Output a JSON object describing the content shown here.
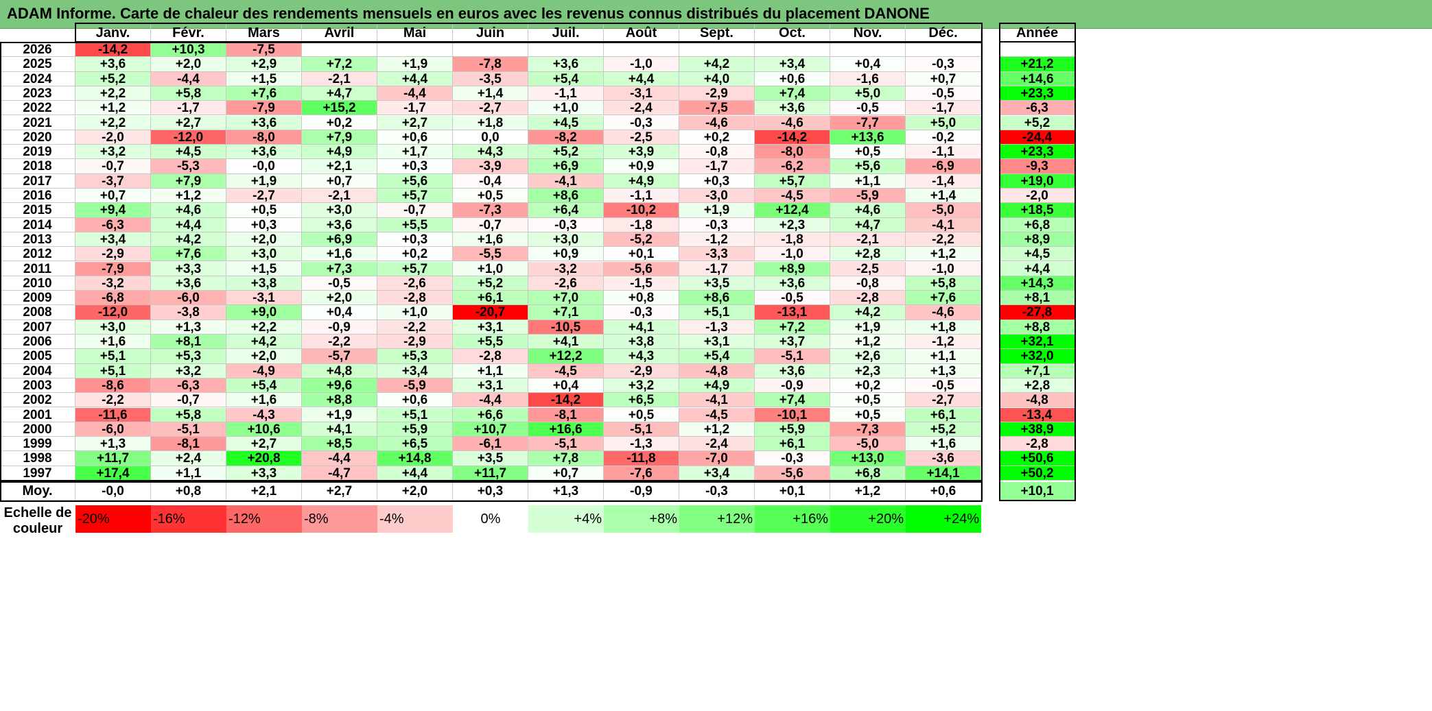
{
  "title": "ADAM Informe. Carte de chaleur des rendements mensuels en euros avec les revenus connus distribués du placement DANONE",
  "chart_data": {
    "type": "heatmap",
    "columns": [
      "Janv.",
      "Févr.",
      "Mars",
      "Avril",
      "Mai",
      "Juin",
      "Juil.",
      "Août",
      "Sept.",
      "Oct.",
      "Nov.",
      "Déc."
    ],
    "year_header": "Année",
    "rows": [
      {
        "year": "2026",
        "values": [
          "-14,2",
          "+10,3",
          "-7,5",
          "",
          "",
          "",
          "",
          "",
          "",
          "",
          "",
          ""
        ],
        "annual": ""
      },
      {
        "year": "2025",
        "values": [
          "+3,6",
          "+2,0",
          "+2,9",
          "+7,2",
          "+1,9",
          "-7,8",
          "+3,6",
          "-1,0",
          "+4,2",
          "+3,4",
          "+0,4",
          "-0,3"
        ],
        "annual": "+21,2"
      },
      {
        "year": "2024",
        "values": [
          "+5,2",
          "-4,4",
          "+1,5",
          "-2,1",
          "+4,4",
          "-3,5",
          "+5,4",
          "+4,4",
          "+4,0",
          "+0,6",
          "-1,6",
          "+0,7"
        ],
        "annual": "+14,6"
      },
      {
        "year": "2023",
        "values": [
          "+2,2",
          "+5,8",
          "+7,6",
          "+4,7",
          "-4,4",
          "+1,4",
          "-1,1",
          "-3,1",
          "-2,9",
          "+7,4",
          "+5,0",
          "-0,5"
        ],
        "annual": "+23,3"
      },
      {
        "year": "2022",
        "values": [
          "+1,2",
          "-1,7",
          "-7,9",
          "+15,2",
          "-1,7",
          "-2,7",
          "+1,0",
          "-2,4",
          "-7,5",
          "+3,6",
          "-0,5",
          "-1,7"
        ],
        "annual": "-6,3"
      },
      {
        "year": "2021",
        "values": [
          "+2,2",
          "+2,7",
          "+3,6",
          "+0,2",
          "+2,7",
          "+1,8",
          "+4,5",
          "-0,3",
          "-4,6",
          "-4,6",
          "-7,7",
          "+5,0"
        ],
        "annual": "+5,2"
      },
      {
        "year": "2020",
        "values": [
          "-2,0",
          "-12,0",
          "-8,0",
          "+7,9",
          "+0,6",
          "0,0",
          "-8,2",
          "-2,5",
          "+0,2",
          "-14,2",
          "+13,6",
          "-0,2"
        ],
        "annual": "-24,4"
      },
      {
        "year": "2019",
        "values": [
          "+3,2",
          "+4,5",
          "+3,6",
          "+4,9",
          "+1,7",
          "+4,3",
          "+5,2",
          "+3,9",
          "-0,8",
          "-8,0",
          "+0,5",
          "-1,1"
        ],
        "annual": "+23,3"
      },
      {
        "year": "2018",
        "values": [
          "-0,7",
          "-5,3",
          "-0,0",
          "+2,1",
          "+0,3",
          "-3,9",
          "+6,9",
          "+0,9",
          "-1,7",
          "-6,2",
          "+5,6",
          "-6,9"
        ],
        "annual": "-9,3"
      },
      {
        "year": "2017",
        "values": [
          "-3,7",
          "+7,9",
          "+1,9",
          "+0,7",
          "+5,6",
          "-0,4",
          "-4,1",
          "+4,9",
          "+0,3",
          "+5,7",
          "+1,1",
          "-1,4"
        ],
        "annual": "+19,0"
      },
      {
        "year": "2016",
        "values": [
          "+0,7",
          "+1,2",
          "-2,7",
          "-2,1",
          "+5,7",
          "+0,5",
          "+8,6",
          "-1,1",
          "-3,0",
          "-4,5",
          "-5,9",
          "+1,4"
        ],
        "annual": "-2,0"
      },
      {
        "year": "2015",
        "values": [
          "+9,4",
          "+4,6",
          "+0,5",
          "+3,0",
          "-0,7",
          "-7,3",
          "+6,4",
          "-10,2",
          "+1,9",
          "+12,4",
          "+4,6",
          "-5,0"
        ],
        "annual": "+18,5"
      },
      {
        "year": "2014",
        "values": [
          "-6,3",
          "+4,4",
          "+0,3",
          "+3,6",
          "+5,5",
          "-0,7",
          "-0,3",
          "-1,8",
          "-0,3",
          "+2,3",
          "+4,7",
          "-4,1"
        ],
        "annual": "+6,8"
      },
      {
        "year": "2013",
        "values": [
          "+3,4",
          "+4,2",
          "+2,0",
          "+6,9",
          "+0,3",
          "+1,6",
          "+3,0",
          "-5,2",
          "-1,2",
          "-1,8",
          "-2,1",
          "-2,2"
        ],
        "annual": "+8,9"
      },
      {
        "year": "2012",
        "values": [
          "-2,9",
          "+7,6",
          "+3,0",
          "+1,6",
          "+0,2",
          "-5,5",
          "+0,9",
          "+0,1",
          "-3,3",
          "-1,0",
          "+2,8",
          "+1,2"
        ],
        "annual": "+4,5"
      },
      {
        "year": "2011",
        "values": [
          "-7,9",
          "+3,3",
          "+1,5",
          "+7,3",
          "+5,7",
          "+1,0",
          "-3,2",
          "-5,6",
          "-1,7",
          "+8,9",
          "-2,5",
          "-1,0"
        ],
        "annual": "+4,4"
      },
      {
        "year": "2010",
        "values": [
          "-3,2",
          "+3,6",
          "+3,8",
          "-0,5",
          "-2,6",
          "+5,2",
          "-2,6",
          "-1,5",
          "+3,5",
          "+3,6",
          "-0,8",
          "+5,8"
        ],
        "annual": "+14,3"
      },
      {
        "year": "2009",
        "values": [
          "-6,8",
          "-6,0",
          "-3,1",
          "+2,0",
          "-2,8",
          "+6,1",
          "+7,0",
          "+0,8",
          "+8,6",
          "-0,5",
          "-2,8",
          "+7,6"
        ],
        "annual": "+8,1"
      },
      {
        "year": "2008",
        "values": [
          "-12,0",
          "-3,8",
          "+9,0",
          "+0,4",
          "+1,0",
          "-20,7",
          "+7,1",
          "-0,3",
          "+5,1",
          "-13,1",
          "+4,2",
          "-4,6"
        ],
        "annual": "-27,8"
      },
      {
        "year": "2007",
        "values": [
          "+3,0",
          "+1,3",
          "+2,2",
          "-0,9",
          "-2,2",
          "+3,1",
          "-10,5",
          "+4,1",
          "-1,3",
          "+7,2",
          "+1,9",
          "+1,8"
        ],
        "annual": "+8,8"
      },
      {
        "year": "2006",
        "values": [
          "+1,6",
          "+8,1",
          "+4,2",
          "-2,2",
          "-2,9",
          "+5,5",
          "+4,1",
          "+3,8",
          "+3,1",
          "+3,7",
          "+1,2",
          "-1,2"
        ],
        "annual": "+32,1"
      },
      {
        "year": "2005",
        "values": [
          "+5,1",
          "+5,3",
          "+2,0",
          "-5,7",
          "+5,3",
          "-2,8",
          "+12,2",
          "+4,3",
          "+5,4",
          "-5,1",
          "+2,6",
          "+1,1"
        ],
        "annual": "+32,0"
      },
      {
        "year": "2004",
        "values": [
          "+5,1",
          "+3,2",
          "-4,9",
          "+4,8",
          "+3,4",
          "+1,1",
          "-4,5",
          "-2,9",
          "-4,8",
          "+3,6",
          "+2,3",
          "+1,3"
        ],
        "annual": "+7,1"
      },
      {
        "year": "2003",
        "values": [
          "-8,6",
          "-6,3",
          "+5,4",
          "+9,6",
          "-5,9",
          "+3,1",
          "+0,4",
          "+3,2",
          "+4,9",
          "-0,9",
          "+0,2",
          "-0,5"
        ],
        "annual": "+2,8"
      },
      {
        "year": "2002",
        "values": [
          "-2,2",
          "-0,7",
          "+1,6",
          "+8,8",
          "+0,6",
          "-4,4",
          "-14,2",
          "+6,5",
          "-4,1",
          "+7,4",
          "+0,5",
          "-2,7"
        ],
        "annual": "-4,8"
      },
      {
        "year": "2001",
        "values": [
          "-11,6",
          "+5,8",
          "-4,3",
          "+1,9",
          "+5,1",
          "+6,6",
          "-8,1",
          "+0,5",
          "-4,5",
          "-10,1",
          "+0,5",
          "+6,1"
        ],
        "annual": "-13,4"
      },
      {
        "year": "2000",
        "values": [
          "-6,0",
          "-5,1",
          "+10,6",
          "+4,1",
          "+5,9",
          "+10,7",
          "+16,6",
          "-5,1",
          "+1,2",
          "+5,9",
          "-7,3",
          "+5,2"
        ],
        "annual": "+38,9"
      },
      {
        "year": "1999",
        "values": [
          "+1,3",
          "-8,1",
          "+2,7",
          "+8,5",
          "+6,5",
          "-6,1",
          "-5,1",
          "-1,3",
          "-2,4",
          "+6,1",
          "-5,0",
          "+1,6"
        ],
        "annual": "-2,8"
      },
      {
        "year": "1998",
        "values": [
          "+11,7",
          "+2,4",
          "+20,8",
          "-4,4",
          "+14,8",
          "+3,5",
          "+7,8",
          "-11,8",
          "-7,0",
          "-0,3",
          "+13,0",
          "-3,6"
        ],
        "annual": "+50,6"
      },
      {
        "year": "1997",
        "values": [
          "+17,4",
          "+1,1",
          "+3,3",
          "-4,7",
          "+4,4",
          "+11,7",
          "+0,7",
          "-7,6",
          "+3,4",
          "-5,6",
          "+6,8",
          "+14,1"
        ],
        "annual": "+50,2"
      }
    ],
    "average": {
      "label": "Moy.",
      "values": [
        "-0,0",
        "+0,8",
        "+2,1",
        "+2,7",
        "+2,0",
        "+0,3",
        "+1,3",
        "-0,9",
        "-0,3",
        "+0,1",
        "+1,2",
        "+0,6"
      ],
      "annual": "+10,1"
    },
    "scale": {
      "label_line1": "Echelle de",
      "label_line2": "couleur",
      "items": [
        {
          "label": "-20%",
          "value": -20,
          "color": "#ff0000"
        },
        {
          "label": "-16%",
          "value": -16,
          "color": "#ff3333"
        },
        {
          "label": "-12%",
          "value": -12,
          "color": "#ff6666"
        },
        {
          "label": "-8%",
          "value": -8,
          "color": "#ff9999"
        },
        {
          "label": "-4%",
          "value": -4,
          "color": "#ffcccc"
        },
        {
          "label": "0%",
          "value": 0,
          "color": "#ffffff"
        },
        {
          "label": "+4%",
          "value": 4,
          "color": "#d5ffd5"
        },
        {
          "label": "+8%",
          "value": 8,
          "color": "#aaffaa"
        },
        {
          "label": "+12%",
          "value": 12,
          "color": "#80ff80"
        },
        {
          "label": "+16%",
          "value": 16,
          "color": "#55ff55"
        },
        {
          "label": "+20%",
          "value": 20,
          "color": "#2bff2b"
        },
        {
          "label": "+24%",
          "value": 24,
          "color": "#00ff00"
        }
      ]
    }
  }
}
